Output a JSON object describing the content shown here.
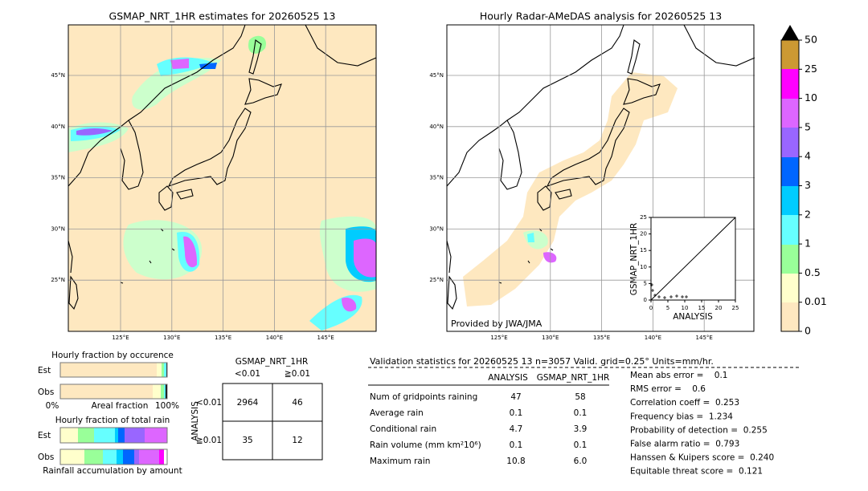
{
  "left_map": {
    "title": "GSMAP_NRT_1HR estimates for 20260525 13",
    "lon_ticks": [
      "125°E",
      "130°E",
      "135°E",
      "140°E",
      "145°E"
    ],
    "lat_ticks": [
      "45°N",
      "40°N",
      "35°N",
      "30°N",
      "25°N"
    ]
  },
  "right_map": {
    "title": "Hourly Radar-AMeDAS analysis for 20260525 13",
    "lon_ticks": [
      "125°E",
      "130°E",
      "135°E",
      "140°E",
      "145°E"
    ],
    "lat_ticks": [
      "45°N",
      "40°N",
      "35°N",
      "30°N",
      "25°N"
    ],
    "credit": "Provided by JWA/JMA",
    "inset": {
      "xlabel": "ANALYSIS",
      "ylabel": "GSMAP_NRT_1HR",
      "xticks": [
        0,
        5,
        10,
        15,
        20,
        25
      ],
      "yticks": [
        0,
        5,
        10,
        15,
        20,
        25
      ]
    }
  },
  "colorbar": {
    "labels": [
      "0",
      "0.01",
      "0.5",
      "1",
      "2",
      "3",
      "4",
      "5",
      "10",
      "25",
      "50"
    ]
  },
  "occurrence": {
    "title": "Hourly fraction by occurence",
    "rows": [
      "Est",
      "Obs"
    ],
    "axis_left": "0%",
    "axis_label": "Areal fraction",
    "axis_right": "100%"
  },
  "total_rain": {
    "title": "Hourly fraction of total rain",
    "rows": [
      "Est",
      "Obs"
    ],
    "footer": "Rainfall accumulation by amount"
  },
  "contingency": {
    "title": "GSMAP_NRT_1HR",
    "col_labels": [
      "<0.01",
      "≧0.01"
    ],
    "row_title": "ANALYSIS",
    "row_labels": [
      "<0.01",
      "≧0.01"
    ],
    "cells": [
      [
        "2964",
        "46"
      ],
      [
        "35",
        "12"
      ]
    ]
  },
  "validation": {
    "title": "Validation statistics for 20260525 13  n=3057 Valid. grid=0.25° Units=mm/hr.",
    "headers": [
      "ANALYSIS",
      "GSMAP_NRT_1HR"
    ],
    "rows": [
      [
        "Num of gridpoints raining",
        "47",
        "58"
      ],
      [
        "Average rain",
        "0.1",
        "0.1"
      ],
      [
        "Conditional rain",
        "4.7",
        "3.9"
      ],
      [
        "Rain volume (mm km²10⁶)",
        "0.1",
        "0.1"
      ],
      [
        "Maximum rain",
        "10.8",
        "6.0"
      ]
    ]
  },
  "scores": [
    "Mean abs error =    0.1",
    "RMS error =    0.6",
    "Correlation coeff =  0.253",
    "Frequency bias =  1.234",
    "Probability of detection =  0.255",
    "False alarm ratio =  0.793",
    "Hanssen & Kuipers score =  0.240",
    "Equitable threat score =  0.121"
  ]
}
